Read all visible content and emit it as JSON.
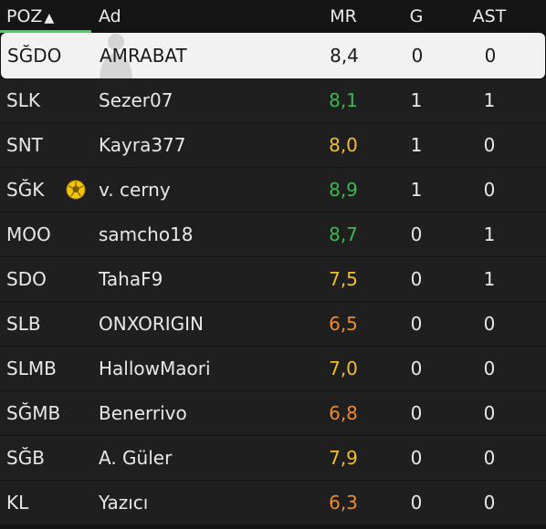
{
  "header": {
    "pos": "POZ",
    "sort_arrow": "▲",
    "name": "Ad",
    "mr": "MR",
    "g": "G",
    "ast": "AST"
  },
  "colors": {
    "green": "#3bb84e",
    "yellow": "#f0bf2c",
    "orange": "#f08a2a",
    "white": "#ececec",
    "accent_underline": "#3fd36a"
  },
  "rows": [
    {
      "pos": "SĞDO",
      "name": "AMRABAT",
      "mr": "8,4",
      "g": "0",
      "ast": "0",
      "mr_color": "dark",
      "selected": true
    },
    {
      "pos": "SLK",
      "name": "Sezer07",
      "mr": "8,1",
      "g": "1",
      "ast": "1",
      "mr_color": "green"
    },
    {
      "pos": "SNT",
      "name": "Kayra377",
      "mr": "8,0",
      "g": "1",
      "ast": "0",
      "mr_color": "yellow"
    },
    {
      "pos": "SĞK",
      "name": "v. cerny",
      "mr": "8,9",
      "g": "1",
      "ast": "0",
      "mr_color": "green",
      "badge": "ball-icon"
    },
    {
      "pos": "MOO",
      "name": "samcho18",
      "mr": "8,7",
      "g": "0",
      "ast": "1",
      "mr_color": "green"
    },
    {
      "pos": "SDO",
      "name": "TahaF9",
      "mr": "7,5",
      "g": "0",
      "ast": "1",
      "mr_color": "yellow"
    },
    {
      "pos": "SLB",
      "name": "ONXORIGIN",
      "mr": "6,5",
      "g": "0",
      "ast": "0",
      "mr_color": "orange"
    },
    {
      "pos": "SLMB",
      "name": "HallowMaori",
      "mr": "7,0",
      "g": "0",
      "ast": "0",
      "mr_color": "yellow"
    },
    {
      "pos": "SĞMB",
      "name": "Benerrivo",
      "mr": "6,8",
      "g": "0",
      "ast": "0",
      "mr_color": "orange"
    },
    {
      "pos": "SĞB",
      "name": "A. Güler",
      "mr": "7,9",
      "g": "0",
      "ast": "0",
      "mr_color": "yellow"
    },
    {
      "pos": "KL",
      "name": "Yazıcı",
      "mr": "6,3",
      "g": "0",
      "ast": "0",
      "mr_color": "orange"
    }
  ]
}
